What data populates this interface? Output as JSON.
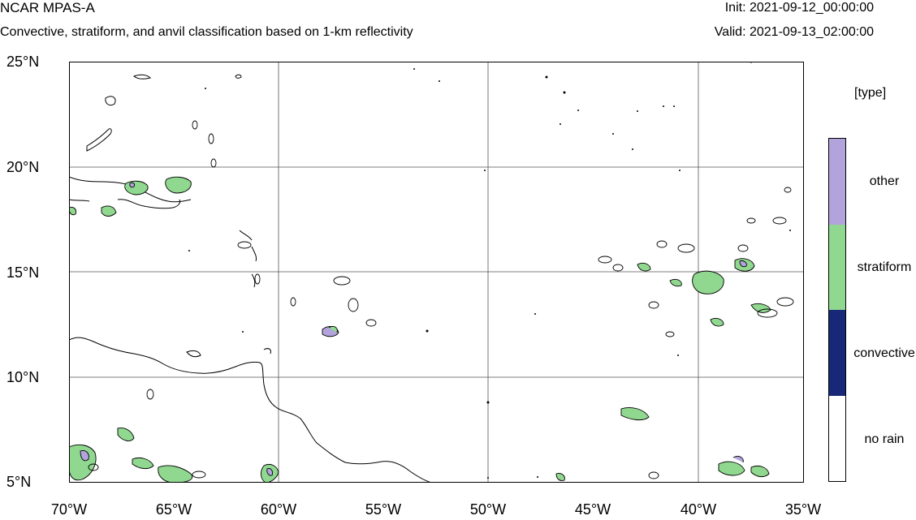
{
  "header": {
    "title": "NCAR MPAS-A",
    "subtitle": "Convective, stratiform, and anvil classification based on 1-km reflectivity",
    "init": "Init: 2021-09-12_00:00:00",
    "valid": "Valid: 2021-09-13_02:00:00"
  },
  "axes": {
    "lat_ticks": [
      "25°N",
      "20°N",
      "15°N",
      "10°N",
      "5°N"
    ],
    "lon_ticks": [
      "70°W",
      "65°W",
      "60°W",
      "55°W",
      "50°W",
      "45°W",
      "40°W",
      "35°W"
    ]
  },
  "map": {
    "lon_range": [
      -70,
      -35
    ],
    "lat_range": [
      5,
      25
    ],
    "grid": true
  },
  "legend": {
    "title": "[type]",
    "items": [
      {
        "label": "other",
        "color": "#b2a3dc"
      },
      {
        "label": "stratiform",
        "color": "#90d890"
      },
      {
        "label": "convective",
        "color": "#182878"
      },
      {
        "label": "no rain",
        "color": "#ffffff"
      }
    ]
  }
}
